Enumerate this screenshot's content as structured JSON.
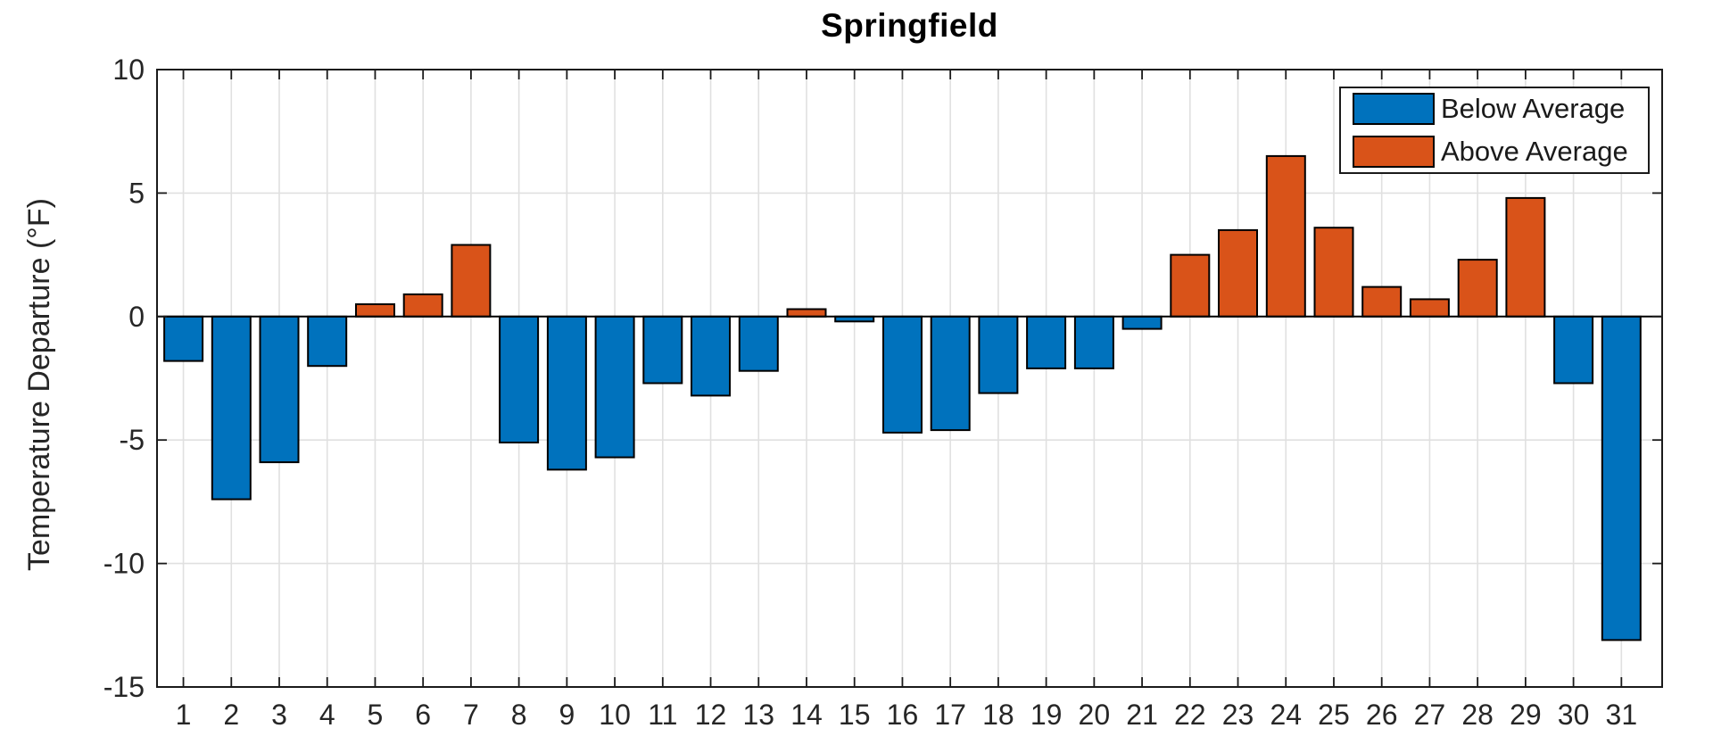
{
  "figure": {
    "title": "Springfield",
    "ylabel": "Temperature Departure (°F)"
  },
  "legend": {
    "position": "top-right",
    "items": [
      {
        "label": "Below Average",
        "color": "#0072BD",
        "swatch": "blue-swatch"
      },
      {
        "label": "Above Average",
        "color": "#D95319",
        "swatch": "orange-swatch"
      }
    ]
  },
  "chart_data": {
    "type": "bar",
    "title": "Springfield",
    "xlabel": "",
    "ylabel": "Temperature Departure (°F)",
    "categories": [
      1,
      2,
      3,
      4,
      5,
      6,
      7,
      8,
      9,
      10,
      11,
      12,
      13,
      14,
      15,
      16,
      17,
      18,
      19,
      20,
      21,
      22,
      23,
      24,
      25,
      26,
      27,
      28,
      29,
      30,
      31
    ],
    "values": [
      -1.8,
      -7.4,
      -5.9,
      -2.0,
      0.5,
      0.9,
      2.9,
      -5.1,
      -6.2,
      -5.7,
      -2.7,
      -3.2,
      -2.2,
      0.3,
      -0.2,
      -4.7,
      -4.6,
      -3.1,
      -2.1,
      -2.1,
      -0.5,
      2.5,
      3.5,
      6.5,
      3.6,
      1.2,
      0.7,
      2.3,
      4.8,
      -2.7,
      -13.1
    ],
    "series": [
      {
        "name": "Below Average",
        "rule": "values < 0",
        "color": "#0072BD"
      },
      {
        "name": "Above Average",
        "rule": "values > 0",
        "color": "#D95319"
      }
    ],
    "ylim": [
      -15,
      10
    ],
    "yticks": [
      10,
      5,
      0,
      -5,
      -10,
      -15
    ],
    "grid": true,
    "legend_position": "top-right",
    "bar_width_fraction": 0.8
  },
  "style": {
    "background": "#FFFFFF",
    "grid_color": "#E0E0E0",
    "axis_color": "#1A1A1A",
    "tick_label_color": "#262626",
    "bar_edge_color": "#000000",
    "below_color": "#0072BD",
    "above_color": "#D95319"
  }
}
